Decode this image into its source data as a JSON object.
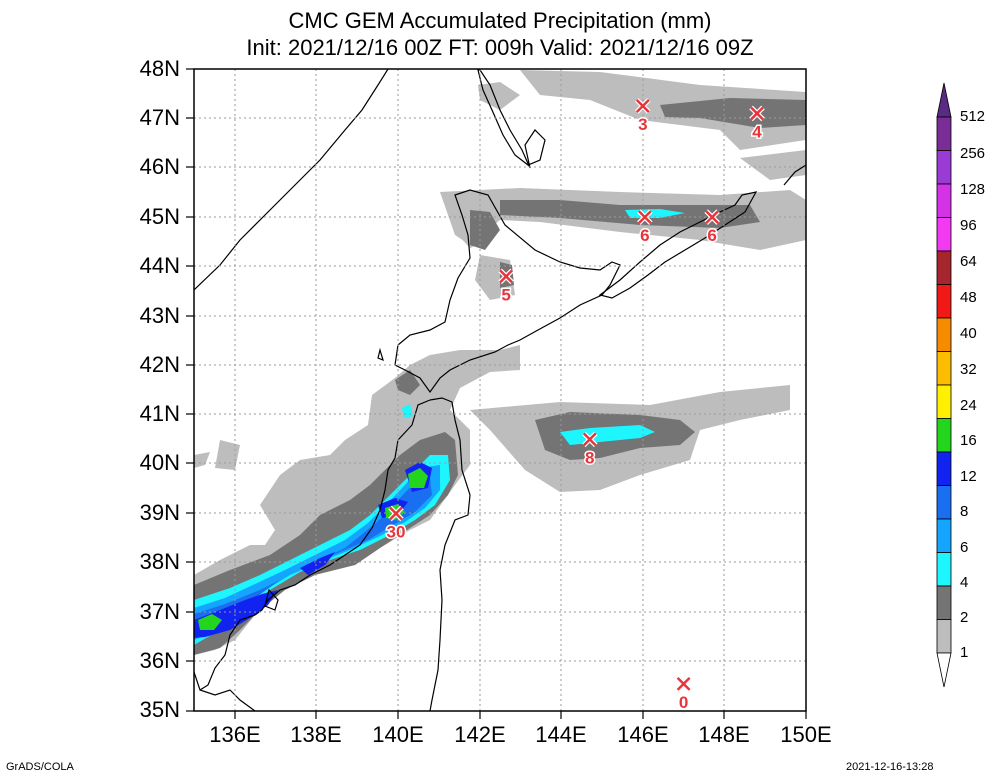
{
  "title": {
    "line1": "CMC GEM Accumulated Precipitation (mm)",
    "line2": "Init: 2021/12/16 00Z  FT: 009h  Valid: 2021/12/16 09Z"
  },
  "axes": {
    "lat_labels": [
      "48N",
      "47N",
      "46N",
      "45N",
      "44N",
      "43N",
      "42N",
      "41N",
      "40N",
      "39N",
      "38N",
      "37N",
      "36N",
      "35N"
    ],
    "lon_labels": [
      "136E",
      "138E",
      "140E",
      "142E",
      "144E",
      "146E",
      "148E",
      "150E"
    ],
    "lat_range": [
      35,
      48
    ],
    "lon_range": [
      135,
      150
    ],
    "grid": "dotted"
  },
  "colorbar": {
    "levels": [
      "512",
      "256",
      "128",
      "96",
      "64",
      "48",
      "40",
      "32",
      "24",
      "16",
      "12",
      "8",
      "6",
      "4",
      "2",
      "1"
    ],
    "colors": [
      "#7a2d96",
      "#9a3bd6",
      "#d432e6",
      "#f33af3",
      "#a5262c",
      "#f11818",
      "#f68b00",
      "#fcbc00",
      "#ffef00",
      "#24d51e",
      "#1023f0",
      "#1a6ff0",
      "#14a5ff",
      "#1df5ff",
      "#747474",
      "#bdbdbd"
    ],
    "top_color": "#5b2a85"
  },
  "markers": [
    {
      "value": "3",
      "lon": 146.0,
      "lat": 47.25
    },
    {
      "value": "4",
      "lon": 148.8,
      "lat": 47.1
    },
    {
      "value": "6",
      "lon": 146.05,
      "lat": 45.0
    },
    {
      "value": "6",
      "lon": 147.7,
      "lat": 45.0
    },
    {
      "value": "5",
      "lon": 142.65,
      "lat": 43.8
    },
    {
      "value": "8",
      "lon": 144.7,
      "lat": 40.5
    },
    {
      "value": "30",
      "lon": 139.95,
      "lat": 39.0
    },
    {
      "value": "0",
      "lon": 147.0,
      "lat": 35.55
    }
  ],
  "footer": {
    "left": "GrADS/COLA",
    "right": "2021-12-16-13:28"
  }
}
